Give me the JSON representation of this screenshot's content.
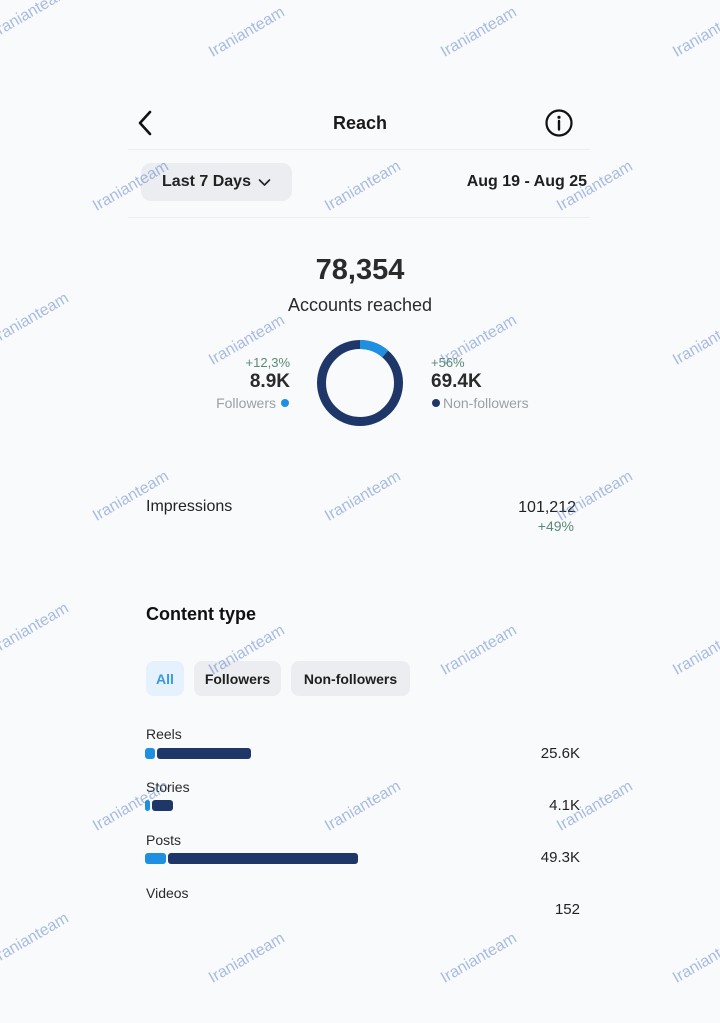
{
  "header": {
    "title": "Reach"
  },
  "range": {
    "selected": "Last 7 Days",
    "dates": "Aug 19 - Aug 25"
  },
  "summary": {
    "total": "78,354",
    "label": "Accounts reached",
    "followers": {
      "change": "+12,3%",
      "value": "8.9K",
      "label": "Followers"
    },
    "non_followers": {
      "change": "+56%",
      "value": "69.4K",
      "label": "Non-followers"
    },
    "donut": {
      "followers_fraction": 0.114
    }
  },
  "impressions": {
    "label": "Impressions",
    "value": "101,212",
    "change": "+49%"
  },
  "content_type": {
    "heading": "Content type",
    "tabs": [
      "All",
      "Followers",
      "Non-followers"
    ],
    "rows": [
      {
        "label": "Reels",
        "value": "25.6K",
        "followers_fraction": 0.09,
        "total_fraction": 0.5
      },
      {
        "label": "Stories",
        "value": "4.1K",
        "followers_fraction": 0.04,
        "total_fraction": 0.13
      },
      {
        "label": "Posts",
        "value": "49.3K",
        "followers_fraction": 0.1,
        "total_fraction": 1.0
      },
      {
        "label": "Videos",
        "value": "152",
        "followers_fraction": 0,
        "total_fraction": 0
      }
    ]
  },
  "colors": {
    "followers": "#1e8fe1",
    "non_followers": "#1f3768",
    "positive": "#5b8a74"
  },
  "icons": {
    "back": "chevron-left",
    "info": "info-circle",
    "dropdown": "chevron-down"
  },
  "watermark": "Iranianteam"
}
